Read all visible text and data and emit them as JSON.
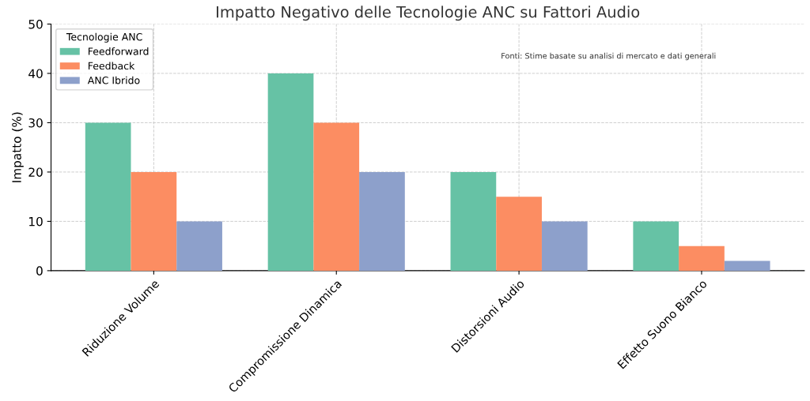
{
  "chart_data": {
    "type": "bar",
    "title": "Impatto Negativo delle Tecnologie ANC su Fattori Audio",
    "ylabel": "Impatto (%)",
    "categories": [
      "Riduzione Volume",
      "Compromissione Dinamica",
      "Distorsioni Audio",
      "Effetto Suono Bianco"
    ],
    "series": [
      {
        "name": "Feedforward",
        "color": "#66c2a5",
        "values": [
          30,
          40,
          20,
          10
        ]
      },
      {
        "name": "Feedback",
        "color": "#fc8d62",
        "values": [
          20,
          30,
          15,
          5
        ]
      },
      {
        "name": "ANC Ibrido",
        "color": "#8da0cb",
        "values": [
          10,
          20,
          10,
          2
        ]
      }
    ],
    "legend_title": "Tecnologie ANC",
    "legend": "top left",
    "ylim": [
      0,
      50
    ],
    "yticks": [
      0,
      10,
      20,
      30,
      40,
      50
    ],
    "grid": true,
    "annotations": [
      "Fonti: Stime basate su analisi di mercato e dati generali"
    ]
  }
}
